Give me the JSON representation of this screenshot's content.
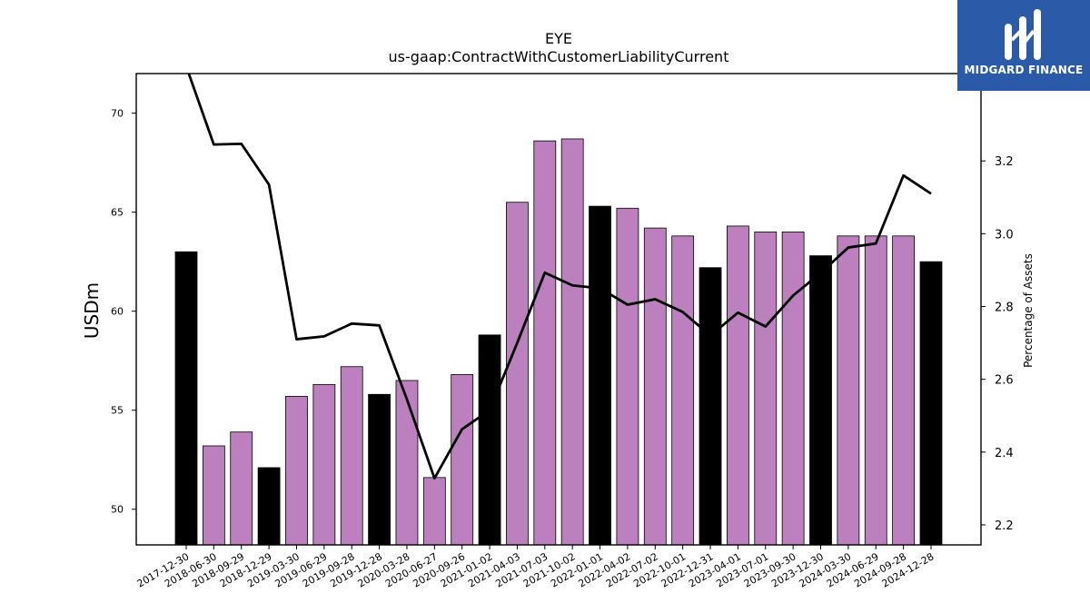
{
  "chart_data": {
    "type": "bar",
    "title": "EYE",
    "subtitle": "us-gaap:ContractWithCustomerLiabilityCurrent",
    "ylabel": "USDm",
    "ylabel_right": "Percentage of Assets",
    "ylim": [
      48.2,
      72
    ],
    "ylim_right": [
      2.145,
      3.44
    ],
    "yticks": [
      50,
      55,
      60,
      65,
      70
    ],
    "yticks_right": [
      2.2,
      2.4,
      2.6,
      2.8,
      3.0,
      3.2
    ],
    "categories": [
      "2017-12-30",
      "2018-06-30",
      "2018-09-29",
      "2018-12-29",
      "2019-03-30",
      "2019-06-29",
      "2019-09-28",
      "2019-12-28",
      "2020-03-28",
      "2020-06-27",
      "2020-09-26",
      "2021-01-02",
      "2021-04-03",
      "2021-07-03",
      "2021-10-02",
      "2022-01-01",
      "2022-04-02",
      "2022-07-02",
      "2022-10-01",
      "2022-12-31",
      "2023-04-01",
      "2023-07-01",
      "2023-09-30",
      "2023-12-30",
      "2024-03-30",
      "2024-06-29",
      "2024-09-28",
      "2024-12-28"
    ],
    "series": [
      {
        "values": [
          63.0,
          53.2,
          53.9,
          52.1,
          55.7,
          56.3,
          57.2,
          55.8,
          56.5,
          51.6,
          56.8,
          58.8,
          65.5,
          68.6,
          68.7,
          65.3,
          65.2,
          64.2,
          63.8,
          62.2,
          64.3,
          64.0,
          64.0,
          62.8,
          63.8,
          63.8,
          63.8,
          62.5
        ],
        "colors": [
          "#000000",
          "#bb80bd",
          "#bb80bd",
          "#000000",
          "#bb80bd",
          "#bb80bd",
          "#bb80bd",
          "#000000",
          "#bb80bd",
          "#bb80bd",
          "#bb80bd",
          "#000000",
          "#bb80bd",
          "#bb80bd",
          "#bb80bd",
          "#000000",
          "#bb80bd",
          "#bb80bd",
          "#bb80bd",
          "#000000",
          "#bb80bd",
          "#bb80bd",
          "#bb80bd",
          "#000000",
          "#bb80bd",
          "#bb80bd",
          "#bb80bd",
          "#000000"
        ]
      },
      {
        "type": "line",
        "axis": "right",
        "values": [
          3.46,
          3.245,
          3.247,
          3.135,
          2.71,
          2.718,
          2.753,
          2.748,
          2.545,
          2.328,
          2.463,
          2.515,
          2.7,
          2.893,
          2.858,
          2.85,
          2.805,
          2.82,
          2.785,
          2.72,
          2.783,
          2.745,
          2.83,
          2.892,
          2.962,
          2.973,
          3.16,
          3.11
        ]
      }
    ],
    "grid": false,
    "legend": "none"
  },
  "logo": {
    "text": "MIDGARD FINANCE",
    "background": "#2b5aa8"
  }
}
